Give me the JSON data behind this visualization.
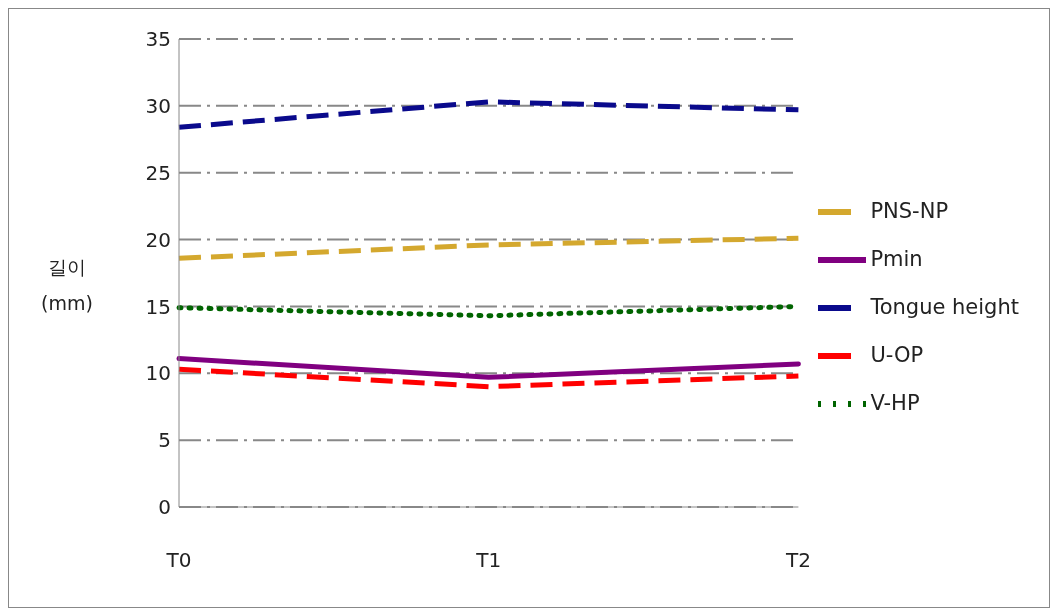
{
  "chart_data": {
    "type": "line",
    "ylabel": "길이 (mm)",
    "categories": [
      "T0",
      "T1",
      "T2"
    ],
    "series": [
      {
        "name": "PNS-NP",
        "color": "#d4a82e",
        "values": [
          18.6,
          19.6,
          20.1
        ],
        "line_style": "dashed"
      },
      {
        "name": "U-OP",
        "color": "#ff0000",
        "values": [
          10.3,
          9.0,
          9.8
        ],
        "line_style": "dashed"
      },
      {
        "name": "V-HP",
        "color": "#006400",
        "values": [
          14.9,
          14.3,
          15.0
        ],
        "line_style": "dotted"
      },
      {
        "name": "Pmin",
        "color": "#800080",
        "values": [
          11.1,
          9.7,
          10.7
        ],
        "line_style": "solid"
      },
      {
        "name": "Tongue height",
        "color": "#0a0a8c",
        "values": [
          28.4,
          30.3,
          29.7
        ],
        "line_style": "dashed"
      }
    ],
    "ylim": [
      0,
      35
    ],
    "yticks": [
      0,
      5,
      10,
      15,
      20,
      25,
      30,
      35
    ],
    "grid": "y",
    "legend": "right",
    "marker": "none"
  }
}
